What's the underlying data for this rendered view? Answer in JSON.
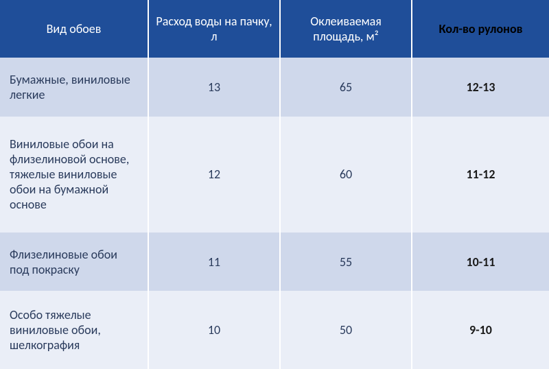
{
  "table": {
    "headers": [
      "Вид обоев",
      "Расход воды на пачку, л",
      "Оклеиваемая площадь, м²",
      "Кол-во рулонов"
    ],
    "rows": [
      {
        "type": "Бумажные, виниловые легкие",
        "water": "13",
        "area": "65",
        "rolls": "12-13"
      },
      {
        "type": "Виниловые обои на флизелиновой основе, тяжелые виниловые обои на бумажной основе",
        "water": "12",
        "area": "60",
        "rolls": "11-12"
      },
      {
        "type": "Флизелиновые обои под покраску",
        "water": "11",
        "area": "55",
        "rolls": "10-11"
      },
      {
        "type": "Особо тяжелые виниловые обои, шелкография",
        "water": "10",
        "area": "50",
        "rolls": "9-10"
      }
    ],
    "colors": {
      "header_bg": "#1f4e99",
      "row_light": "#cfd8eb",
      "row_white": "#eaeef7",
      "header_text": "#ffffff",
      "data_text": "#2a3b5c",
      "bold_text": "#1a1a1a",
      "border": "#ffffff"
    },
    "column_widths": [
      "27%",
      "24%",
      "24%",
      "25%"
    ],
    "font_sizes": {
      "header": 18,
      "data": 18
    }
  }
}
